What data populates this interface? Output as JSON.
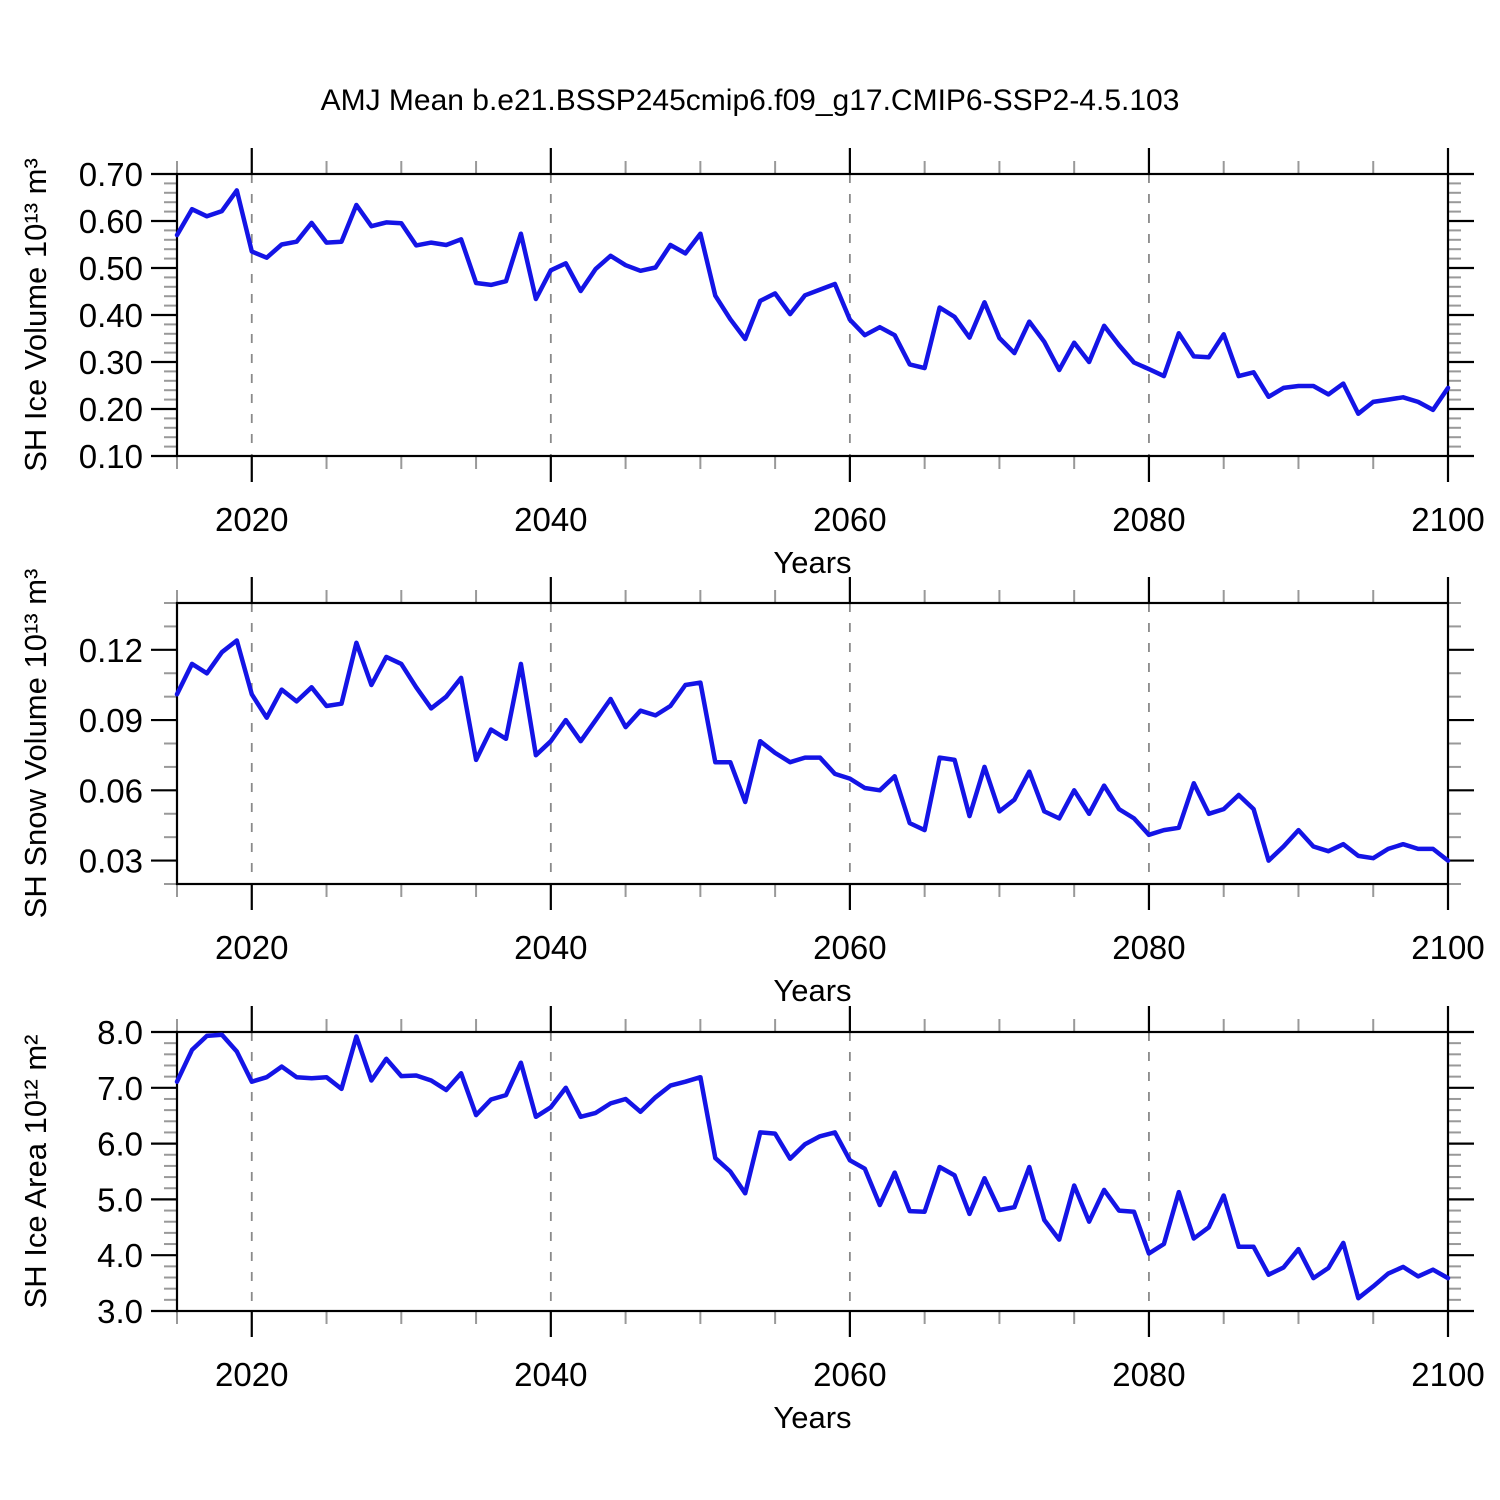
{
  "title": "AMJ Mean b.e21.BSSP245cmip6.f09_g17.CMIP6-SSP2-4.5.103",
  "background_color": "#ffffff",
  "line_color": "#1414e6",
  "gridline_color": "#8a8a8a",
  "minor_tick_color": "#999999",
  "chart_data": [
    {
      "id": "sh-ice-volume",
      "type": "line",
      "title": "",
      "ylabel": "SH Ice Volume 10¹³ m³",
      "xlabel": "Years",
      "legend": "none",
      "grid": "vertical-dashed-only",
      "xlim": [
        2015,
        2100
      ],
      "ylim": [
        0.1,
        0.7
      ],
      "xticks": {
        "major": [
          2020,
          2040,
          2060,
          2080,
          2100
        ],
        "labels": [
          "2020",
          "2040",
          "2060",
          "2080",
          "2100"
        ],
        "minor_step": 5
      },
      "yticks": {
        "major": [
          0.7,
          0.6,
          0.5,
          0.4,
          0.3,
          0.2,
          0.1
        ],
        "labels": [
          "0.70",
          "0.60",
          "0.50",
          "0.40",
          "0.30",
          "0.20",
          "0.10"
        ],
        "minor_step": 0.02
      },
      "gridlines_x": [
        2020,
        2040,
        2060,
        2080
      ],
      "x_start": 2015,
      "x_step": 1,
      "values": [
        0.57,
        0.625,
        0.61,
        0.621,
        0.665,
        0.535,
        0.522,
        0.55,
        0.556,
        0.596,
        0.554,
        0.556,
        0.634,
        0.589,
        0.597,
        0.595,
        0.548,
        0.554,
        0.549,
        0.561,
        0.468,
        0.464,
        0.472,
        0.573,
        0.434,
        0.495,
        0.51,
        0.451,
        0.498,
        0.526,
        0.506,
        0.494,
        0.501,
        0.549,
        0.531,
        0.573,
        0.441,
        0.391,
        0.349,
        0.43,
        0.446,
        0.402,
        0.442,
        0.454,
        0.466,
        0.39,
        0.357,
        0.374,
        0.357,
        0.295,
        0.287,
        0.416,
        0.396,
        0.352,
        0.427,
        0.351,
        0.319,
        0.386,
        0.343,
        0.283,
        0.341,
        0.3,
        0.377,
        0.336,
        0.299,
        0.285,
        0.27,
        0.361,
        0.312,
        0.31,
        0.359,
        0.27,
        0.278,
        0.226,
        0.245,
        0.249,
        0.249,
        0.231,
        0.254,
        0.19,
        0.215,
        0.22,
        0.225,
        0.215,
        0.198,
        0.245
      ]
    },
    {
      "id": "sh-snow-volume",
      "type": "line",
      "title": "",
      "ylabel": "SH Snow Volume 10¹³ m³",
      "xlabel": "Years",
      "legend": "none",
      "grid": "vertical-dashed-only",
      "xlim": [
        2015,
        2100
      ],
      "ylim": [
        0.02,
        0.14
      ],
      "xticks": {
        "major": [
          2020,
          2040,
          2060,
          2080,
          2100
        ],
        "labels": [
          "2020",
          "2040",
          "2060",
          "2080",
          "2100"
        ],
        "minor_step": 5
      },
      "yticks": {
        "major": [
          0.12,
          0.09,
          0.06,
          0.03
        ],
        "labels": [
          "0.12",
          "0.09",
          "0.06",
          "0.03"
        ],
        "minor_step": 0.01
      },
      "gridlines_x": [
        2020,
        2040,
        2060,
        2080
      ],
      "x_start": 2015,
      "x_step": 1,
      "values": [
        0.101,
        0.114,
        0.11,
        0.119,
        0.124,
        0.101,
        0.091,
        0.103,
        0.098,
        0.104,
        0.096,
        0.097,
        0.123,
        0.105,
        0.117,
        0.114,
        0.104,
        0.095,
        0.1,
        0.108,
        0.073,
        0.086,
        0.082,
        0.114,
        0.075,
        0.081,
        0.09,
        0.081,
        0.09,
        0.099,
        0.087,
        0.094,
        0.092,
        0.096,
        0.105,
        0.106,
        0.072,
        0.072,
        0.055,
        0.081,
        0.076,
        0.072,
        0.074,
        0.074,
        0.067,
        0.065,
        0.061,
        0.06,
        0.066,
        0.046,
        0.043,
        0.074,
        0.073,
        0.049,
        0.07,
        0.051,
        0.056,
        0.068,
        0.051,
        0.048,
        0.06,
        0.05,
        0.062,
        0.052,
        0.048,
        0.041,
        0.043,
        0.044,
        0.063,
        0.05,
        0.052,
        0.058,
        0.052,
        0.03,
        0.036,
        0.043,
        0.036,
        0.034,
        0.037,
        0.032,
        0.031,
        0.035,
        0.037,
        0.035,
        0.035,
        0.03
      ]
    },
    {
      "id": "sh-ice-area",
      "type": "line",
      "title": "",
      "ylabel": "SH Ice Area 10¹² m²",
      "xlabel": "Years",
      "legend": "none",
      "grid": "vertical-dashed-only",
      "xlim": [
        2015,
        2100
      ],
      "ylim": [
        3.0,
        8.0
      ],
      "xticks": {
        "major": [
          2020,
          2040,
          2060,
          2080,
          2100
        ],
        "labels": [
          "2020",
          "2040",
          "2060",
          "2080",
          "2100"
        ],
        "minor_step": 5
      },
      "yticks": {
        "major": [
          8.0,
          7.0,
          6.0,
          5.0,
          4.0,
          3.0
        ],
        "labels": [
          "8.0",
          "7.0",
          "6.0",
          "5.0",
          "4.0",
          "3.0"
        ],
        "minor_step": 0.2
      },
      "gridlines_x": [
        2020,
        2040,
        2060,
        2080
      ],
      "x_start": 2015,
      "x_step": 1,
      "values": [
        7.11,
        7.68,
        7.93,
        7.95,
        7.65,
        7.11,
        7.19,
        7.38,
        7.19,
        7.17,
        7.19,
        6.98,
        7.92,
        7.13,
        7.52,
        7.21,
        7.22,
        7.13,
        6.96,
        7.26,
        6.51,
        6.79,
        6.87,
        7.45,
        6.48,
        6.65,
        7.0,
        6.48,
        6.55,
        6.72,
        6.8,
        6.57,
        6.83,
        7.04,
        7.11,
        7.19,
        5.74,
        5.5,
        5.11,
        6.2,
        6.18,
        5.73,
        5.99,
        6.13,
        6.2,
        5.7,
        5.55,
        4.9,
        5.48,
        4.79,
        4.78,
        5.58,
        5.43,
        4.74,
        5.38,
        4.81,
        4.86,
        5.58,
        4.63,
        4.28,
        5.25,
        4.6,
        5.17,
        4.8,
        4.78,
        4.03,
        4.2,
        5.13,
        4.3,
        4.5,
        5.07,
        4.15,
        4.15,
        3.65,
        3.78,
        4.11,
        3.59,
        3.77,
        4.22,
        3.23,
        3.44,
        3.67,
        3.79,
        3.62,
        3.74,
        3.59
      ]
    }
  ]
}
